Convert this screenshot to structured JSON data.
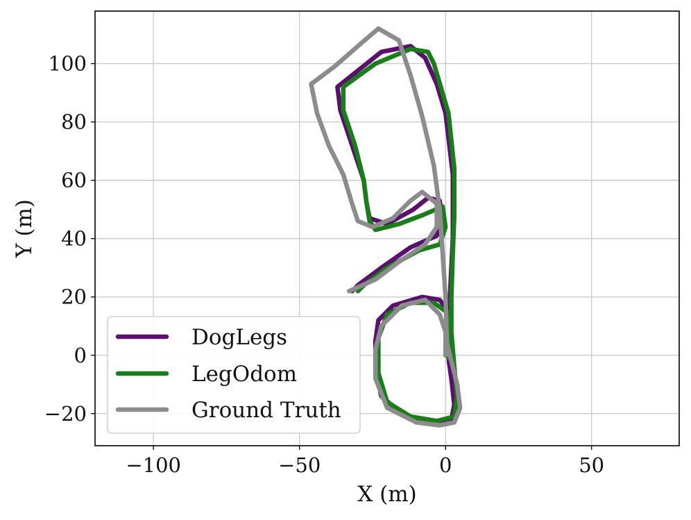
{
  "chart_data": {
    "type": "line",
    "title": "",
    "xlabel": "X (m)",
    "ylabel": "Y (m)",
    "xlim": [
      -120,
      80
    ],
    "ylim": [
      -31,
      118
    ],
    "xticks": [
      -100,
      -50,
      0,
      50
    ],
    "yticks": [
      -20,
      0,
      20,
      40,
      60,
      80,
      100
    ],
    "xtick_labels": [
      "−100",
      "−50",
      "0",
      "50"
    ],
    "ytick_labels": [
      "−20",
      "0",
      "20",
      "40",
      "60",
      "80",
      "100"
    ],
    "grid": true,
    "legend_position": "bottom-left",
    "series": [
      {
        "name": "DogLegs",
        "color": "#5c0f6e",
        "points": [
          [
            0,
            0
          ],
          [
            0.5,
            8
          ],
          [
            1,
            15
          ],
          [
            -2,
            19
          ],
          [
            -8,
            20
          ],
          [
            -18,
            17
          ],
          [
            -23,
            12
          ],
          [
            -24,
            5
          ],
          [
            -24,
            -5
          ],
          [
            -22,
            -14
          ],
          [
            -14,
            -21
          ],
          [
            -4,
            -23.5
          ],
          [
            2,
            -22
          ],
          [
            3,
            -17
          ],
          [
            2,
            -8
          ],
          [
            1,
            -1
          ],
          [
            1,
            8
          ],
          [
            1.5,
            20
          ],
          [
            2.5,
            40
          ],
          [
            2.5,
            62
          ],
          [
            0,
            83
          ],
          [
            -3,
            93
          ],
          [
            -7,
            102
          ],
          [
            -12,
            106
          ],
          [
            -22,
            104
          ],
          [
            -32,
            96
          ],
          [
            -37,
            92
          ],
          [
            -36,
            84
          ],
          [
            -32,
            72
          ],
          [
            -28,
            60
          ],
          [
            -27,
            52
          ],
          [
            -26,
            47
          ],
          [
            -20,
            45
          ],
          [
            -11,
            50
          ],
          [
            -6,
            54
          ],
          [
            -2,
            53
          ],
          [
            -1,
            46
          ],
          [
            -3,
            41
          ],
          [
            -12,
            37
          ],
          [
            -22,
            30
          ],
          [
            -30,
            24
          ],
          [
            -32,
            22
          ]
        ]
      },
      {
        "name": "LegOdom",
        "color": "#177f17",
        "points": [
          [
            1,
            -1
          ],
          [
            1.5,
            6
          ],
          [
            1.5,
            14
          ],
          [
            -4,
            18
          ],
          [
            -12,
            18
          ],
          [
            -20,
            14
          ],
          [
            -23,
            6
          ],
          [
            -23,
            -6
          ],
          [
            -20,
            -16
          ],
          [
            -12,
            -21
          ],
          [
            -3,
            -22.5
          ],
          [
            3,
            -21
          ],
          [
            4,
            -14
          ],
          [
            3,
            -4
          ],
          [
            2,
            8
          ],
          [
            2,
            20
          ],
          [
            2.5,
            35
          ],
          [
            3,
            48
          ],
          [
            3,
            64
          ],
          [
            1,
            83
          ],
          [
            -4,
            100
          ],
          [
            -6,
            104
          ],
          [
            -12,
            105
          ],
          [
            -24,
            100
          ],
          [
            -35,
            92
          ],
          [
            -35,
            84
          ],
          [
            -31,
            72
          ],
          [
            -28,
            60
          ],
          [
            -27,
            52
          ],
          [
            -26,
            46
          ],
          [
            -24,
            43
          ],
          [
            -16,
            45
          ],
          [
            -8,
            48
          ],
          [
            -1,
            51
          ],
          [
            0,
            44
          ],
          [
            -2,
            38
          ],
          [
            -9,
            36
          ],
          [
            -20,
            30
          ],
          [
            -28,
            24
          ],
          [
            -30,
            22
          ]
        ]
      },
      {
        "name": "Ground Truth",
        "color": "#8c8c8c",
        "points": [
          [
            0,
            0
          ],
          [
            0,
            8
          ],
          [
            -2,
            14
          ],
          [
            -7,
            19
          ],
          [
            -15,
            17
          ],
          [
            -22,
            10
          ],
          [
            -24,
            2
          ],
          [
            -24,
            -8
          ],
          [
            -20,
            -18
          ],
          [
            -10,
            -23
          ],
          [
            -2,
            -24
          ],
          [
            3,
            -23
          ],
          [
            5,
            -18
          ],
          [
            4,
            -10
          ],
          [
            2,
            -2
          ],
          [
            0.5,
            4
          ],
          [
            0,
            20
          ],
          [
            -1,
            35
          ],
          [
            -2,
            50
          ],
          [
            -4,
            65
          ],
          [
            -8,
            82
          ],
          [
            -12,
            96
          ],
          [
            -16,
            108
          ],
          [
            -23,
            112
          ],
          [
            -30,
            106
          ],
          [
            -38,
            99
          ],
          [
            -46,
            93
          ],
          [
            -44,
            83
          ],
          [
            -40,
            72
          ],
          [
            -35,
            62
          ],
          [
            -32,
            52
          ],
          [
            -30,
            46
          ],
          [
            -25,
            44
          ],
          [
            -18,
            47
          ],
          [
            -12,
            53
          ],
          [
            -8,
            56
          ],
          [
            -3,
            52
          ],
          [
            -3,
            44
          ],
          [
            -7,
            38
          ],
          [
            -16,
            32
          ],
          [
            -24,
            26
          ],
          [
            -33,
            22
          ]
        ]
      }
    ]
  }
}
